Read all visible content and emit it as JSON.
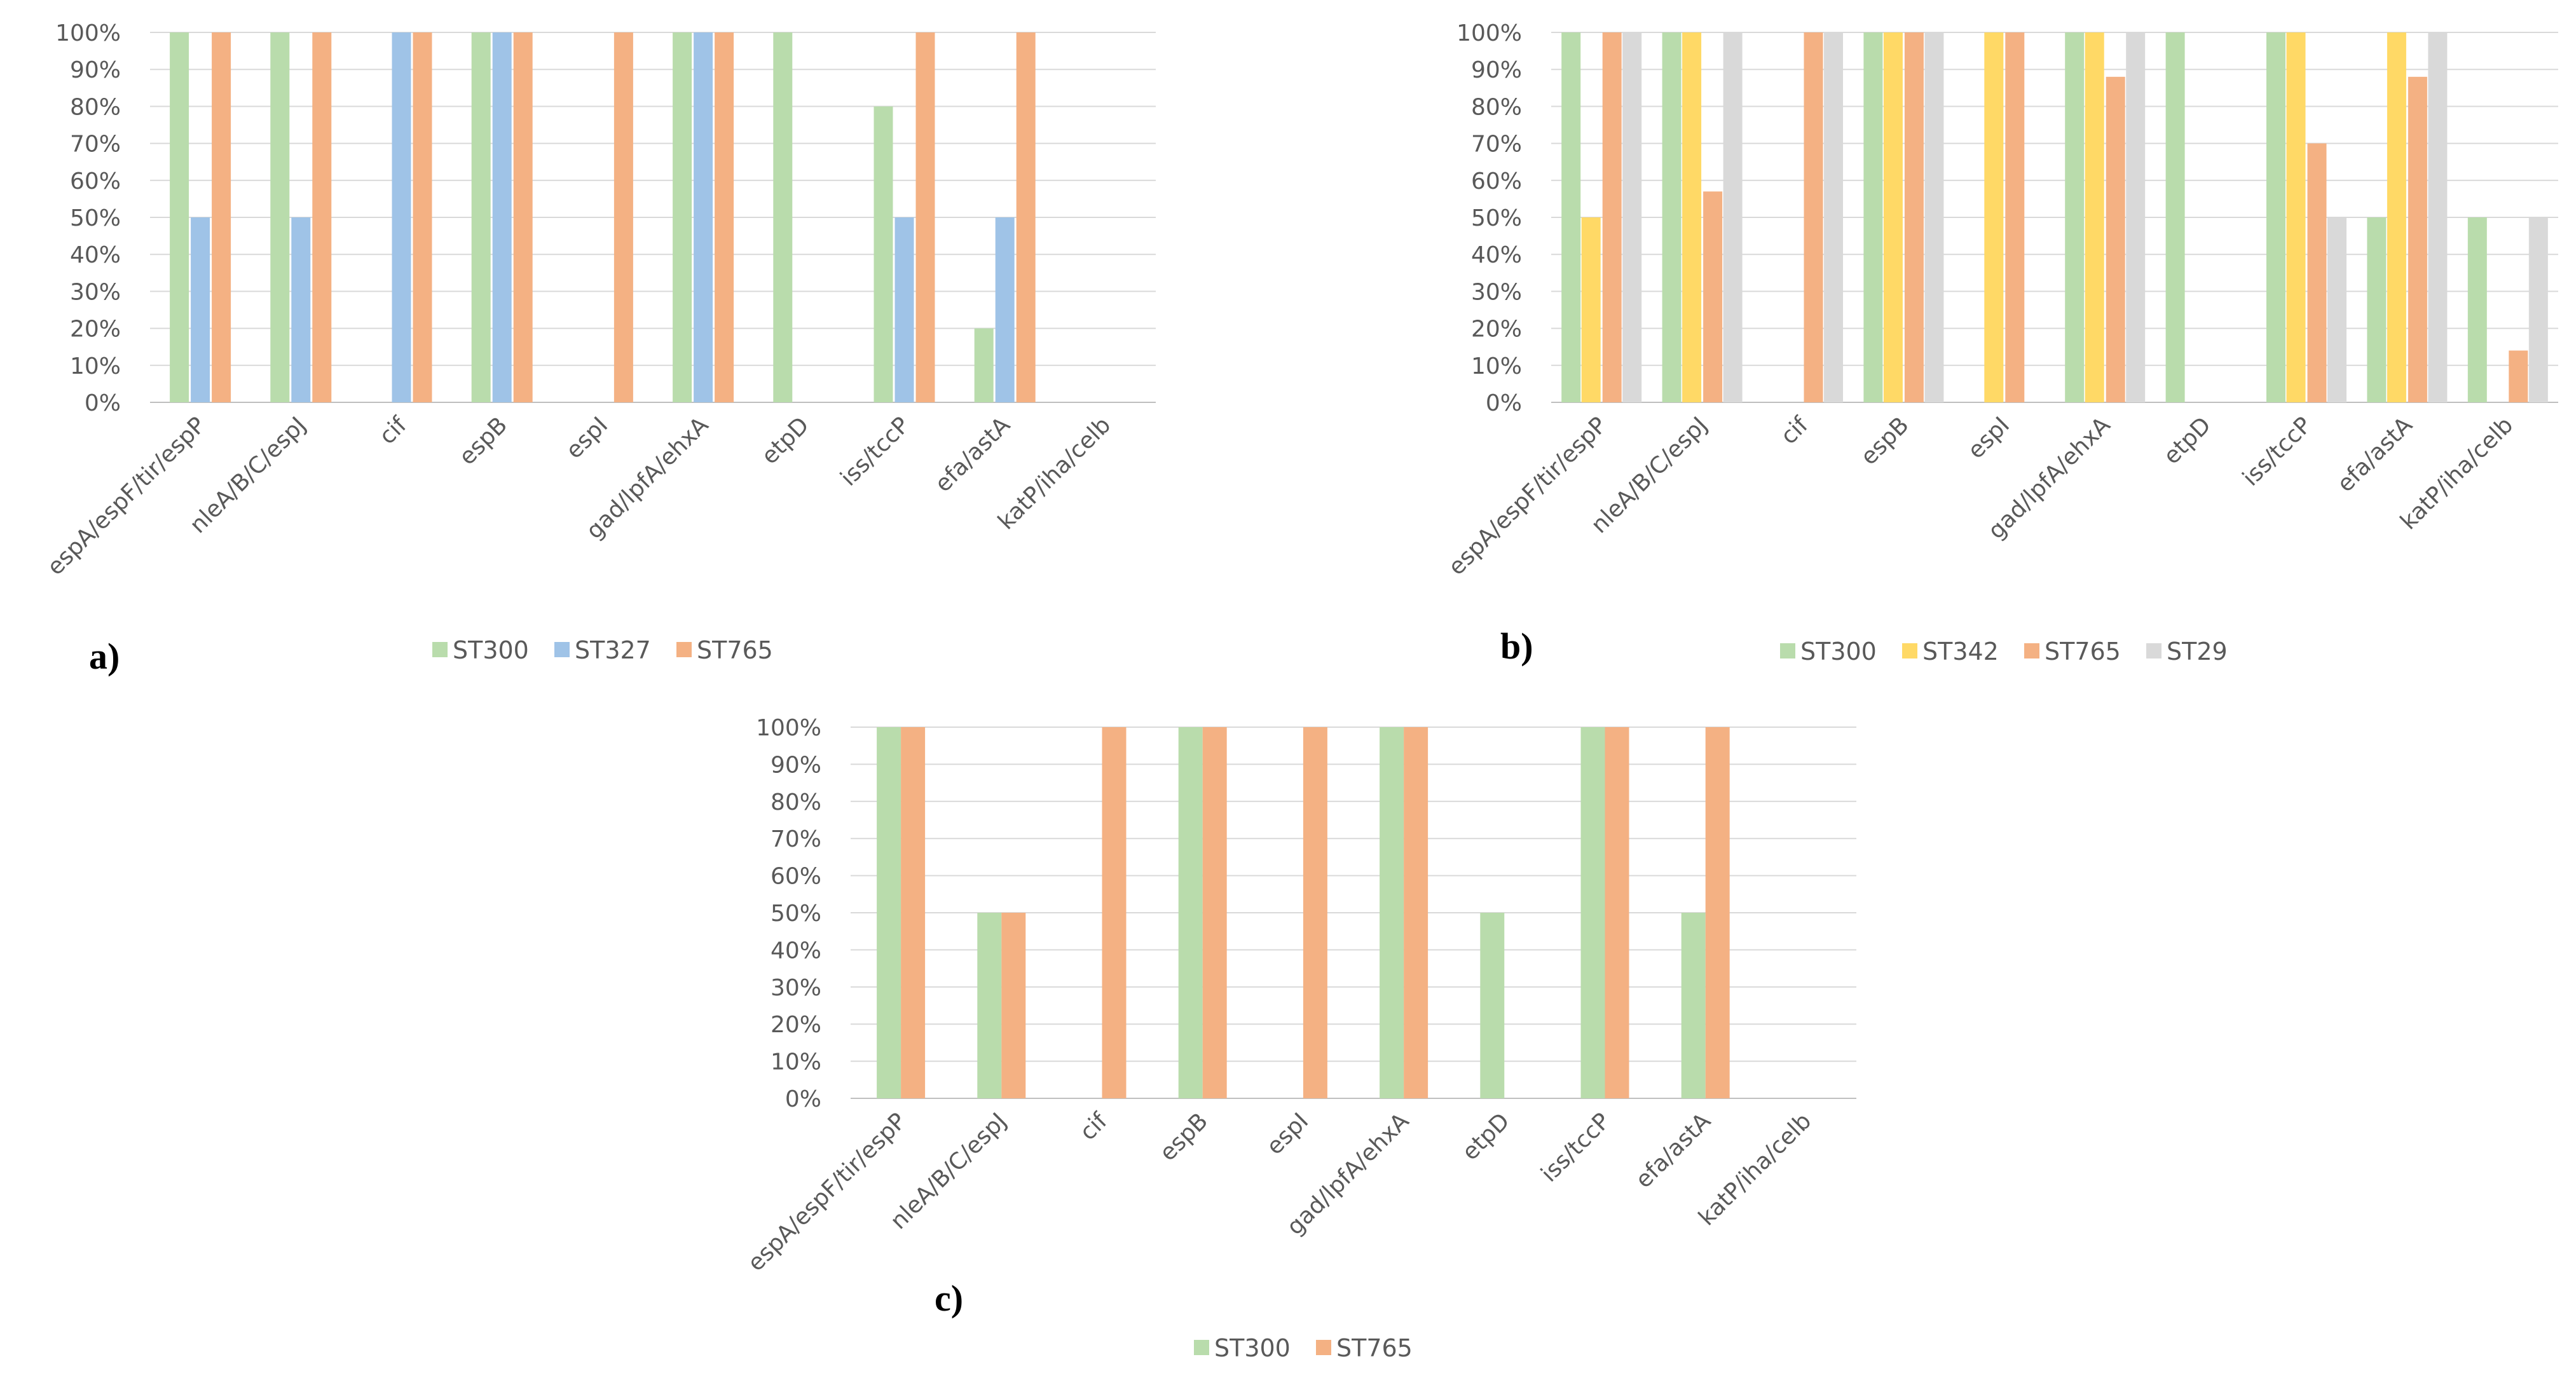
{
  "colors": {
    "ST300": "#b9dcac",
    "ST327": "#9fc3e7",
    "ST342": "#ffd966",
    "ST765": "#f4b183",
    "ST29": "#d9d9d9"
  },
  "chart_data": [
    {
      "type": "bar",
      "panel_label": "a)",
      "categories": [
        "espA/espF/tir/espP",
        "nleA/B/C/espJ",
        "cif",
        "espB",
        "espI",
        "gad/lpfA/ehxA",
        "etpD",
        "iss/tccP",
        "efa/astA",
        "katP/iha/celb"
      ],
      "series": [
        {
          "name": "ST300",
          "values": [
            100,
            100,
            0,
            100,
            0,
            100,
            100,
            80,
            20,
            0
          ]
        },
        {
          "name": "ST327",
          "values": [
            50,
            50,
            100,
            100,
            0,
            100,
            0,
            50,
            50,
            0
          ]
        },
        {
          "name": "ST765",
          "values": [
            100,
            100,
            100,
            100,
            100,
            100,
            0,
            100,
            100,
            0
          ]
        }
      ],
      "y_ticks": [
        "0%",
        "10%",
        "20%",
        "30%",
        "40%",
        "50%",
        "60%",
        "70%",
        "80%",
        "90%",
        "100%"
      ],
      "ylim": [
        0,
        100
      ],
      "legend": "bottom"
    },
    {
      "type": "bar",
      "panel_label": "b)",
      "categories": [
        "espA/espF/tir/espP",
        "nleA/B/C/espJ",
        "cif",
        "espB",
        "espI",
        "gad/lpfA/ehxA",
        "etpD",
        "iss/tccP",
        "efa/astA",
        "katP/iha/celb"
      ],
      "series": [
        {
          "name": "ST300",
          "values": [
            100,
            100,
            0,
            100,
            0,
            100,
            100,
            100,
            50,
            50
          ]
        },
        {
          "name": "ST342",
          "values": [
            50,
            100,
            0,
            100,
            100,
            100,
            0,
            100,
            100,
            0
          ]
        },
        {
          "name": "ST765",
          "values": [
            100,
            57,
            100,
            100,
            100,
            88,
            0,
            70,
            88,
            14
          ]
        },
        {
          "name": "ST29",
          "values": [
            100,
            100,
            100,
            100,
            0,
            100,
            0,
            50,
            100,
            50
          ]
        }
      ],
      "y_ticks": [
        "0%",
        "10%",
        "20%",
        "30%",
        "40%",
        "50%",
        "60%",
        "70%",
        "80%",
        "90%",
        "100%"
      ],
      "ylim": [
        0,
        100
      ],
      "legend": "bottom"
    },
    {
      "type": "bar",
      "panel_label": "c)",
      "categories": [
        "espA/espF/tir/espP",
        "nleA/B/C/espJ",
        "cif",
        "espB",
        "espI",
        "gad/lpfA/ehxA",
        "etpD",
        "iss/tccP",
        "efa/astA",
        "katP/iha/celb"
      ],
      "series": [
        {
          "name": "ST300",
          "values": [
            100,
            50,
            0,
            100,
            0,
            100,
            50,
            100,
            50,
            0
          ]
        },
        {
          "name": "ST765",
          "values": [
            100,
            50,
            100,
            100,
            100,
            100,
            0,
            100,
            100,
            0
          ]
        }
      ],
      "y_ticks": [
        "0%",
        "10%",
        "20%",
        "30%",
        "40%",
        "50%",
        "60%",
        "70%",
        "80%",
        "90%",
        "100%"
      ],
      "ylim": [
        0,
        100
      ],
      "legend": "bottom"
    }
  ]
}
